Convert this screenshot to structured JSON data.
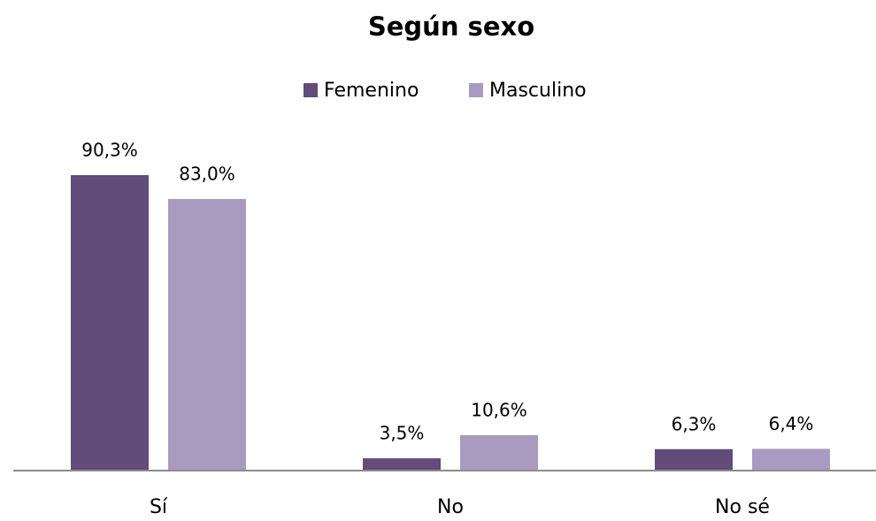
{
  "chart_data": {
    "type": "bar",
    "title": "Según sexo",
    "categories": [
      "Sí",
      "No",
      "No sé"
    ],
    "series": [
      {
        "name": "Femenino",
        "color": "#614c7a",
        "values": [
          90.3,
          3.5,
          6.3
        ],
        "value_labels": [
          "90,3%",
          "3,5%",
          "6,3%"
        ]
      },
      {
        "name": "Masculino",
        "color": "#a99bbf",
        "values": [
          83.0,
          10.6,
          6.4
        ],
        "value_labels": [
          "83,0%",
          "10,6%",
          "6,4%"
        ]
      }
    ],
    "legend": "top"
  }
}
